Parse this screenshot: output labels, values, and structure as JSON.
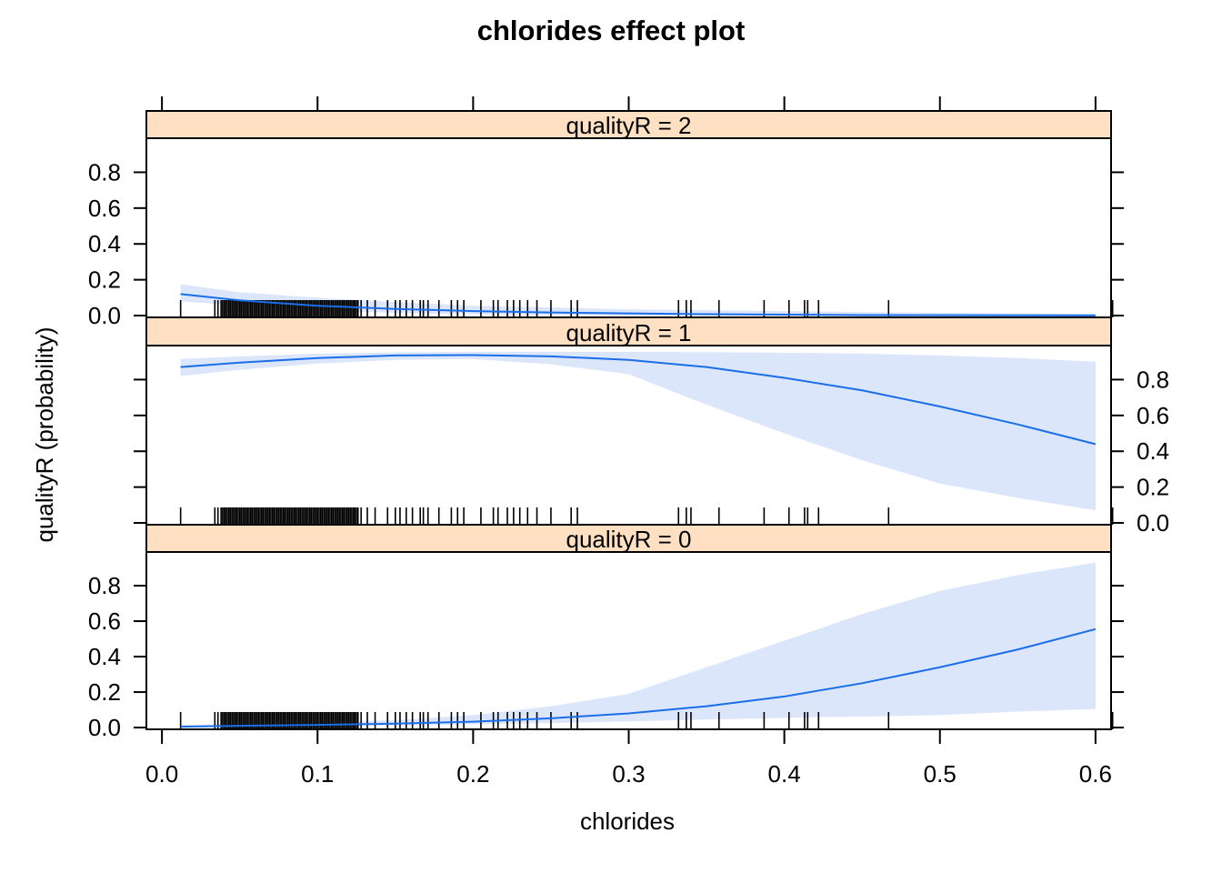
{
  "chart_data": {
    "type": "line",
    "title": "chlorides effect plot",
    "xlabel": "chlorides",
    "ylabel": "qualityR (probability)",
    "xlim": [
      -0.01,
      0.61
    ],
    "ylim": [
      -0.01,
      0.99
    ],
    "x_ticks": [
      "0.0",
      "0.1",
      "0.2",
      "0.3",
      "0.4",
      "0.5",
      "0.6"
    ],
    "y_ticks": [
      "0.0",
      "0.2",
      "0.4",
      "0.6",
      "0.8"
    ],
    "grid": false,
    "colors": {
      "line": "#1a6ee8",
      "band": "#dce6fb",
      "strip": "#ffe0c2",
      "rug": "#000000"
    },
    "rug": [
      0.012,
      0.034,
      0.036,
      0.038,
      0.039,
      0.04,
      0.041,
      0.042,
      0.043,
      0.044,
      0.045,
      0.046,
      0.047,
      0.048,
      0.049,
      0.05,
      0.051,
      0.052,
      0.053,
      0.054,
      0.055,
      0.056,
      0.057,
      0.058,
      0.059,
      0.06,
      0.061,
      0.062,
      0.063,
      0.064,
      0.065,
      0.066,
      0.067,
      0.068,
      0.069,
      0.07,
      0.071,
      0.072,
      0.073,
      0.074,
      0.075,
      0.076,
      0.077,
      0.078,
      0.079,
      0.08,
      0.081,
      0.082,
      0.083,
      0.084,
      0.085,
      0.086,
      0.087,
      0.088,
      0.089,
      0.09,
      0.091,
      0.092,
      0.093,
      0.094,
      0.095,
      0.096,
      0.097,
      0.098,
      0.099,
      0.1,
      0.101,
      0.102,
      0.103,
      0.104,
      0.105,
      0.106,
      0.107,
      0.108,
      0.109,
      0.11,
      0.111,
      0.112,
      0.113,
      0.114,
      0.115,
      0.116,
      0.117,
      0.118,
      0.119,
      0.12,
      0.121,
      0.122,
      0.123,
      0.124,
      0.125,
      0.126,
      0.128,
      0.132,
      0.137,
      0.145,
      0.15,
      0.153,
      0.157,
      0.161,
      0.166,
      0.168,
      0.171,
      0.178,
      0.186,
      0.19,
      0.194,
      0.205,
      0.213,
      0.216,
      0.222,
      0.226,
      0.23,
      0.235,
      0.241,
      0.25,
      0.263,
      0.267,
      0.332,
      0.337,
      0.34,
      0.358,
      0.387,
      0.403,
      0.413,
      0.415,
      0.422,
      0.467,
      0.61,
      0.611
    ],
    "panels": [
      {
        "strip": "qualityR = 2",
        "x": [
          0.012,
          0.05,
          0.1,
          0.15,
          0.2,
          0.25,
          0.3,
          0.35,
          0.4,
          0.45,
          0.5,
          0.55,
          0.6
        ],
        "fit": [
          0.12,
          0.085,
          0.055,
          0.037,
          0.025,
          0.017,
          0.012,
          0.008,
          0.005,
          0.003,
          0.002,
          0.0015,
          0.001
        ],
        "lower": [
          0.08,
          0.055,
          0.03,
          0.015,
          0.007,
          0.003,
          0.001,
          0.0005,
          0.0003,
          0.0002,
          0.0001,
          0.0001,
          0.0001
        ],
        "upper": [
          0.175,
          0.13,
          0.1,
          0.075,
          0.055,
          0.045,
          0.035,
          0.03,
          0.025,
          0.02,
          0.016,
          0.013,
          0.01
        ]
      },
      {
        "strip": "qualityR = 1",
        "x": [
          0.012,
          0.05,
          0.1,
          0.15,
          0.2,
          0.25,
          0.3,
          0.35,
          0.4,
          0.45,
          0.5,
          0.55,
          0.6
        ],
        "fit": [
          0.87,
          0.895,
          0.92,
          0.935,
          0.937,
          0.93,
          0.91,
          0.87,
          0.81,
          0.74,
          0.65,
          0.55,
          0.44
        ],
        "lower": [
          0.82,
          0.855,
          0.89,
          0.91,
          0.915,
          0.885,
          0.83,
          0.66,
          0.5,
          0.35,
          0.22,
          0.14,
          0.07
        ],
        "upper": [
          0.915,
          0.93,
          0.945,
          0.952,
          0.955,
          0.955,
          0.955,
          0.953,
          0.95,
          0.945,
          0.935,
          0.92,
          0.9
        ]
      },
      {
        "strip": "qualityR = 0",
        "x": [
          0.012,
          0.05,
          0.1,
          0.15,
          0.2,
          0.25,
          0.3,
          0.35,
          0.4,
          0.45,
          0.5,
          0.55,
          0.6
        ],
        "fit": [
          0.005,
          0.01,
          0.015,
          0.022,
          0.033,
          0.052,
          0.08,
          0.12,
          0.175,
          0.25,
          0.34,
          0.44,
          0.555
        ],
        "lower": [
          0.002,
          0.004,
          0.008,
          0.012,
          0.018,
          0.025,
          0.035,
          0.045,
          0.055,
          0.062,
          0.07,
          0.09,
          0.105
        ],
        "upper": [
          0.015,
          0.022,
          0.03,
          0.042,
          0.07,
          0.12,
          0.19,
          0.34,
          0.49,
          0.64,
          0.77,
          0.86,
          0.93
        ]
      }
    ]
  }
}
